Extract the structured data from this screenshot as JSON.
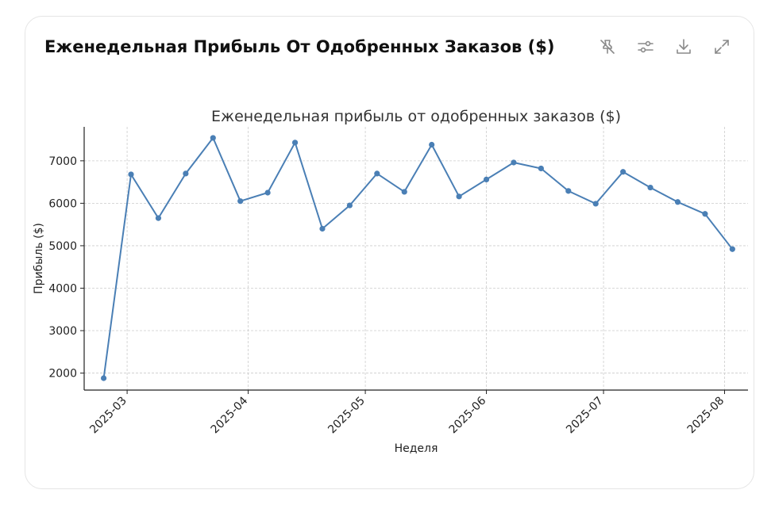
{
  "header": {
    "title": "Еженедельная Прибыль От Одобренных Заказов ($)",
    "tools": [
      {
        "icon": "pin-off-icon"
      },
      {
        "icon": "sliders-icon"
      },
      {
        "icon": "download-icon"
      },
      {
        "icon": "expand-icon"
      }
    ]
  },
  "colors": {
    "series": "#4a7fb5",
    "grid": "#cccccc",
    "axis": "#222222",
    "text": "#333333"
  },
  "chart_data": {
    "type": "line",
    "title": "Еженедельная прибыль от одобренных заказов ($)",
    "xlabel": "Неделя",
    "ylabel": "Прибыль ($)",
    "x": [
      "2025-02-23",
      "2025-03-02",
      "2025-03-09",
      "2025-03-16",
      "2025-03-23",
      "2025-03-30",
      "2025-04-06",
      "2025-04-13",
      "2025-04-20",
      "2025-04-27",
      "2025-05-04",
      "2025-05-11",
      "2025-05-18",
      "2025-05-25",
      "2025-06-01",
      "2025-06-08",
      "2025-06-15",
      "2025-06-22",
      "2025-06-29",
      "2025-07-06",
      "2025-07-13",
      "2025-07-20",
      "2025-07-27",
      "2025-08-03"
    ],
    "series": [
      {
        "values": [
          1880,
          6680,
          5650,
          6700,
          7540,
          6050,
          6250,
          7430,
          5400,
          5950,
          6700,
          6270,
          7380,
          6160,
          6560,
          6960,
          6820,
          6290,
          5990,
          6740,
          6370,
          6030,
          5750,
          4920
        ]
      }
    ],
    "x_ticks": [
      "2025-03",
      "2025-04",
      "2025-05",
      "2025-06",
      "2025-07",
      "2025-08"
    ],
    "x_tick_dates": [
      "2025-03-01",
      "2025-04-01",
      "2025-05-01",
      "2025-06-01",
      "2025-07-01",
      "2025-08-01"
    ],
    "y_ticks": [
      2000,
      3000,
      4000,
      5000,
      6000,
      7000
    ],
    "ylim": [
      1600,
      7800
    ],
    "xlim": [
      "2025-02-18",
      "2025-08-07"
    ],
    "grid": true,
    "marker": "circle"
  }
}
